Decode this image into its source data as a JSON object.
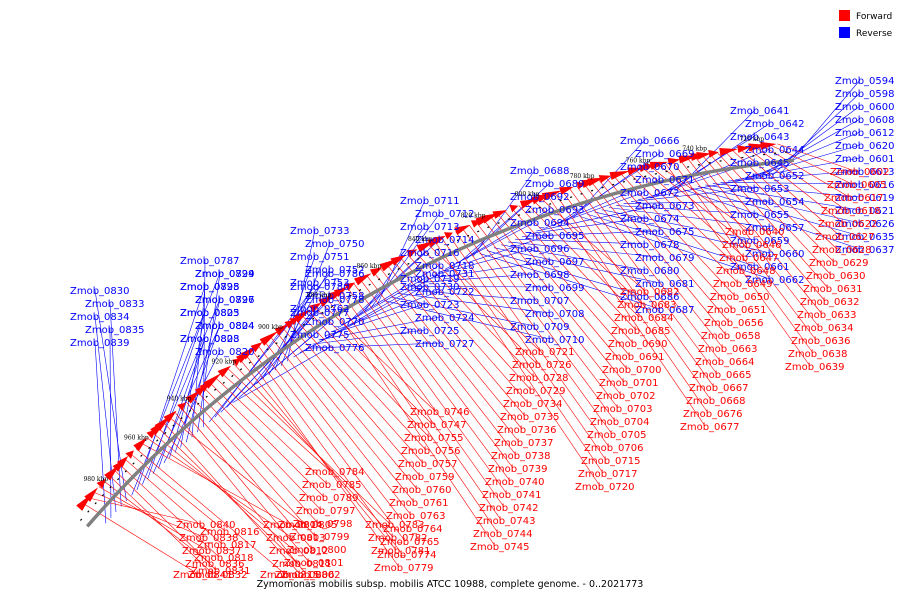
{
  "title": "Zymomonas mobilis subsp. mobilis ATCC 10988, complete genome. - 0..2021773",
  "legend": [
    {
      "label": "Forward",
      "color": "#ff0000"
    },
    {
      "label": "Reverse",
      "color": "#0000ff"
    }
  ],
  "colors": {
    "forward": "#ff0000",
    "reverse": "#0000ff",
    "backbone": "#808080",
    "tick": "#000000"
  },
  "ticks": [
    "720 kbp",
    "740 kbp",
    "760 kbp",
    "780 kbp",
    "800 kbp",
    "820 kbp",
    "840 kbp",
    "860 kbp",
    "880 kbp",
    "900 kbp",
    "920 kbp",
    "940 kbp",
    "960 kbp",
    "980 kbp"
  ],
  "reverse_labels": [
    "Zmob_0594",
    "Zmob_0598",
    "Zmob_0600",
    "Zmob_0608",
    "Zmob_0612",
    "Zmob_0620",
    "Zmob_0601",
    "Zmob_0613",
    "Zmob_0616",
    "Zmob_0619",
    "Zmob_0621",
    "Zmob_0626",
    "Zmob_0635",
    "Zmob_0637",
    "Zmob_0641",
    "Zmob_0642",
    "Zmob_0643",
    "Zmob_0644",
    "Zmob_0645",
    "Zmob_0652",
    "Zmob_0653",
    "Zmob_0654",
    "Zmob_0655",
    "Zmob_0657",
    "Zmob_0659",
    "Zmob_0660",
    "Zmob_0661",
    "Zmob_0662",
    "Zmob_0666",
    "Zmob_0669",
    "Zmob_0670",
    "Zmob_0671",
    "Zmob_0672",
    "Zmob_0673",
    "Zmob_0674",
    "Zmob_0675",
    "Zmob_0678",
    "Zmob_0679",
    "Zmob_0680",
    "Zmob_0681",
    "Zmob_0686",
    "Zmob_0687",
    "Zmob_0688",
    "Zmob_0689",
    "Zmob_0692",
    "Zmob_0693",
    "Zmob_0694",
    "Zmob_0695",
    "Zmob_0696",
    "Zmob_0697",
    "Zmob_0698",
    "Zmob_0699",
    "Zmob_0707",
    "Zmob_0708",
    "Zmob_0709",
    "Zmob_0710",
    "Zmob_0711",
    "Zmob_0712",
    "Zmob_0713",
    "Zmob_0714",
    "Zmob_0716",
    "Zmob_0718",
    "Zmob_0719",
    "Zmob_0722",
    "Zmob_0723",
    "Zmob_0724",
    "Zmob_0725",
    "Zmob_0727",
    "Zmob_0730",
    "Zmob_0731",
    "Zmob_0733",
    "Zmob_0750",
    "Zmob_0751",
    "Zmob_0752",
    "Zmob_0753",
    "Zmob_0758",
    "Zmob_0762",
    "Zmob_0770",
    "Zmob_0775",
    "Zmob_0776",
    "Zmob_0777",
    "Zmob_0778",
    "Zmob_0780",
    "Zmob_0786",
    "Zmob_0787",
    "Zmob_0794",
    "Zmob_0795",
    "Zmob_0796",
    "Zmob_0803",
    "Zmob_0804",
    "Zmob_0808",
    "Zmob_0820",
    "Zmob_0823",
    "Zmob_0824",
    "Zmob_0825",
    "Zmob_0827",
    "Zmob_0828",
    "Zmob_0829",
    "Zmob_0830",
    "Zmob_0833",
    "Zmob_0834",
    "Zmob_0835",
    "Zmob_0839"
  ],
  "forward_labels": [
    "Zmob_0602",
    "Zmob_0605",
    "Zmob_0617",
    "Zmob_0618",
    "Zmob_0622",
    "Zmob_0627",
    "Zmob_0628",
    "Zmob_0629",
    "Zmob_0630",
    "Zmob_0631",
    "Zmob_0632",
    "Zmob_0633",
    "Zmob_0634",
    "Zmob_0636",
    "Zmob_0638",
    "Zmob_0639",
    "Zmob_0640",
    "Zmob_0646",
    "Zmob_0647",
    "Zmob_0648",
    "Zmob_0649",
    "Zmob_0650",
    "Zmob_0651",
    "Zmob_0656",
    "Zmob_0658",
    "Zmob_0663",
    "Zmob_0664",
    "Zmob_0665",
    "Zmob_0667",
    "Zmob_0668",
    "Zmob_0676",
    "Zmob_0677",
    "Zmob_0682",
    "Zmob_0683",
    "Zmob_0684",
    "Zmob_0685",
    "Zmob_0690",
    "Zmob_0691",
    "Zmob_0700",
    "Zmob_0701",
    "Zmob_0702",
    "Zmob_0703",
    "Zmob_0704",
    "Zmob_0705",
    "Zmob_0706",
    "Zmob_0715",
    "Zmob_0717",
    "Zmob_0720",
    "Zmob_0721",
    "Zmob_0726",
    "Zmob_0728",
    "Zmob_0729",
    "Zmob_0734",
    "Zmob_0735",
    "Zmob_0736",
    "Zmob_0737",
    "Zmob_0738",
    "Zmob_0739",
    "Zmob_0740",
    "Zmob_0741",
    "Zmob_0742",
    "Zmob_0743",
    "Zmob_0744",
    "Zmob_0745",
    "Zmob_0746",
    "Zmob_0747",
    "Zmob_0755",
    "Zmob_0756",
    "Zmob_0757",
    "Zmob_0759",
    "Zmob_0760",
    "Zmob_0761",
    "Zmob_0763",
    "Zmob_0764",
    "Zmob_0765",
    "Zmob_0774",
    "Zmob_0779",
    "Zmob_0781",
    "Zmob_0782",
    "Zmob_0783",
    "Zmob_0784",
    "Zmob_0785",
    "Zmob_0789",
    "Zmob_0797",
    "Zmob_0798",
    "Zmob_0799",
    "Zmob_0800",
    "Zmob_0801",
    "Zmob_0802",
    "Zmob_0805",
    "Zmob_0806",
    "Zmob_0811",
    "Zmob_0812",
    "Zmob_0813",
    "Zmob_0814",
    "Zmob_0815",
    "Zmob_0816",
    "Zmob_0817",
    "Zmob_0818",
    "Zmob_0831",
    "Zmob_0832",
    "Zmob_0836",
    "Zmob_0837",
    "Zmob_0838",
    "Zmob_0840",
    "Zmob_0841"
  ]
}
